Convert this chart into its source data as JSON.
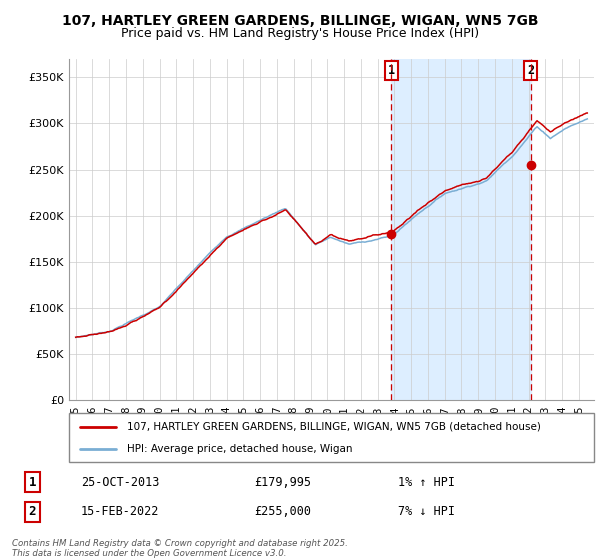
{
  "title_line1": "107, HARTLEY GREEN GARDENS, BILLINGE, WIGAN, WN5 7GB",
  "title_line2": "Price paid vs. HM Land Registry's House Price Index (HPI)",
  "legend_label1": "107, HARTLEY GREEN GARDENS, BILLINGE, WIGAN, WN5 7GB (detached house)",
  "legend_label2": "HPI: Average price, detached house, Wigan",
  "footer": "Contains HM Land Registry data © Crown copyright and database right 2025.\nThis data is licensed under the Open Government Licence v3.0.",
  "annotation1_label": "1",
  "annotation1_date": "25-OCT-2013",
  "annotation1_price": "£179,995",
  "annotation1_hpi": "1% ↑ HPI",
  "annotation1_year": 2013.82,
  "annotation1_value": 179995,
  "annotation2_label": "2",
  "annotation2_date": "15-FEB-2022",
  "annotation2_price": "£255,000",
  "annotation2_hpi": "7% ↓ HPI",
  "annotation2_year": 2022.12,
  "annotation2_value": 255000,
  "hpi_color": "#7aaed4",
  "price_color": "#cc0000",
  "dot_color": "#cc0000",
  "vline_color": "#cc0000",
  "shade_color": "#ddeeff",
  "ytick_labels": [
    "£0",
    "£50K",
    "£100K",
    "£150K",
    "£200K",
    "£250K",
    "£300K",
    "£350K"
  ],
  "ytick_values": [
    0,
    50000,
    100000,
    150000,
    200000,
    250000,
    300000,
    350000
  ],
  "ylim": [
    0,
    370000
  ],
  "xlim_start": 1994.6,
  "xlim_end": 2025.9,
  "xtick_years": [
    1995,
    1996,
    1997,
    1998,
    1999,
    2000,
    2001,
    2002,
    2003,
    2004,
    2005,
    2006,
    2007,
    2008,
    2009,
    2010,
    2011,
    2012,
    2013,
    2014,
    2015,
    2016,
    2017,
    2018,
    2019,
    2020,
    2021,
    2022,
    2023,
    2024,
    2025
  ]
}
